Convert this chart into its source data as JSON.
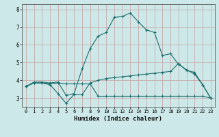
{
  "xlabel": "Humidex (Indice chaleur)",
  "bg_color": "#cce8e8",
  "grid_color": "#b0d8d8",
  "line_color": "#1a6b6b",
  "xlim": [
    -0.5,
    23.5
  ],
  "ylim": [
    2.5,
    8.3
  ],
  "xticks": [
    0,
    1,
    2,
    3,
    4,
    5,
    6,
    7,
    8,
    9,
    10,
    11,
    12,
    13,
    14,
    15,
    16,
    17,
    18,
    19,
    20,
    21,
    22,
    23
  ],
  "yticks": [
    3,
    4,
    5,
    6,
    7,
    8
  ],
  "line1_x": [
    0,
    1,
    2,
    3,
    4,
    5,
    6,
    7,
    8,
    9,
    10,
    11,
    12,
    13,
    14,
    15,
    16,
    17,
    18,
    19,
    20,
    21,
    22,
    23
  ],
  "line1_y": [
    3.65,
    3.9,
    3.9,
    3.85,
    3.9,
    3.15,
    3.25,
    4.65,
    5.8,
    6.5,
    6.7,
    7.55,
    7.6,
    7.8,
    7.3,
    6.85,
    6.7,
    5.4,
    5.5,
    4.9,
    4.6,
    4.35,
    3.75,
    3.0
  ],
  "line2_x": [
    0,
    1,
    2,
    3,
    4,
    5,
    6,
    7,
    8,
    9,
    10,
    11,
    12,
    13,
    14,
    15,
    16,
    17,
    18,
    19,
    20,
    21,
    22,
    23
  ],
  "line2_y": [
    3.65,
    3.85,
    3.85,
    3.75,
    3.25,
    2.7,
    3.2,
    3.2,
    3.85,
    4.0,
    4.1,
    4.15,
    4.2,
    4.25,
    4.3,
    4.35,
    4.4,
    4.45,
    4.5,
    4.95,
    4.55,
    4.45,
    3.75,
    3.0
  ],
  "line3_x": [
    0,
    1,
    2,
    3,
    4,
    5,
    6,
    7,
    8,
    9,
    10,
    11,
    12,
    13,
    14,
    15,
    16,
    17,
    18,
    19,
    20,
    21,
    22,
    23
  ],
  "line3_y": [
    3.65,
    3.85,
    3.85,
    3.8,
    3.85,
    3.8,
    3.8,
    3.8,
    3.8,
    3.1,
    3.1,
    3.1,
    3.1,
    3.1,
    3.1,
    3.1,
    3.1,
    3.1,
    3.1,
    3.1,
    3.1,
    3.1,
    3.1,
    3.0
  ]
}
